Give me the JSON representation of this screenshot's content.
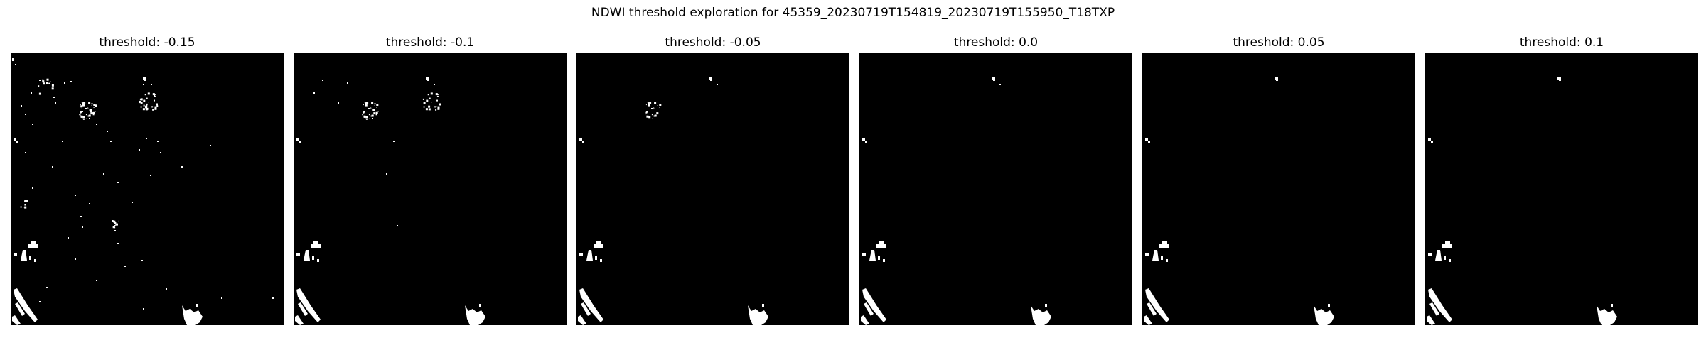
{
  "figure": {
    "title": "NDWI threshold exploration for 45359_20230719T154819_20230719T155950_T18TXP"
  },
  "panels": [
    {
      "title": "threshold: -0.15",
      "threshold": -0.15
    },
    {
      "title": "threshold: -0.1",
      "threshold": -0.1
    },
    {
      "title": "threshold: -0.05",
      "threshold": -0.05
    },
    {
      "title": "threshold: 0.0",
      "threshold": 0.0
    },
    {
      "title": "threshold: 0.05",
      "threshold": 0.05
    },
    {
      "title": "threshold: 0.1",
      "threshold": 0.1
    }
  ],
  "colors": {
    "background": "#000000",
    "water": "#ffffff"
  }
}
